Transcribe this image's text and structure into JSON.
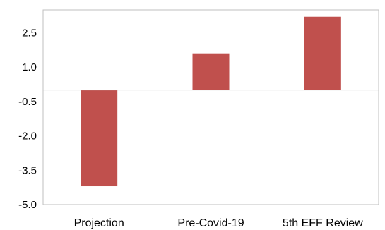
{
  "chart_data": {
    "type": "bar",
    "categories": [
      "Projection",
      "Pre-Covid-19",
      "5th EFF Review"
    ],
    "values": [
      -4.2,
      1.6,
      3.2
    ],
    "ylim": [
      -5.0,
      3.5
    ],
    "yticks": [
      -5.0,
      -3.5,
      -2.0,
      -0.5,
      1.0,
      2.5
    ],
    "ytick_labels": [
      "-5.0",
      "-3.5",
      "-2.0",
      "-0.5",
      "1.0",
      "2.5"
    ],
    "grid": false,
    "legend": "none",
    "bar_color": "#c0504d",
    "axis_color": "#bfbfbf"
  }
}
